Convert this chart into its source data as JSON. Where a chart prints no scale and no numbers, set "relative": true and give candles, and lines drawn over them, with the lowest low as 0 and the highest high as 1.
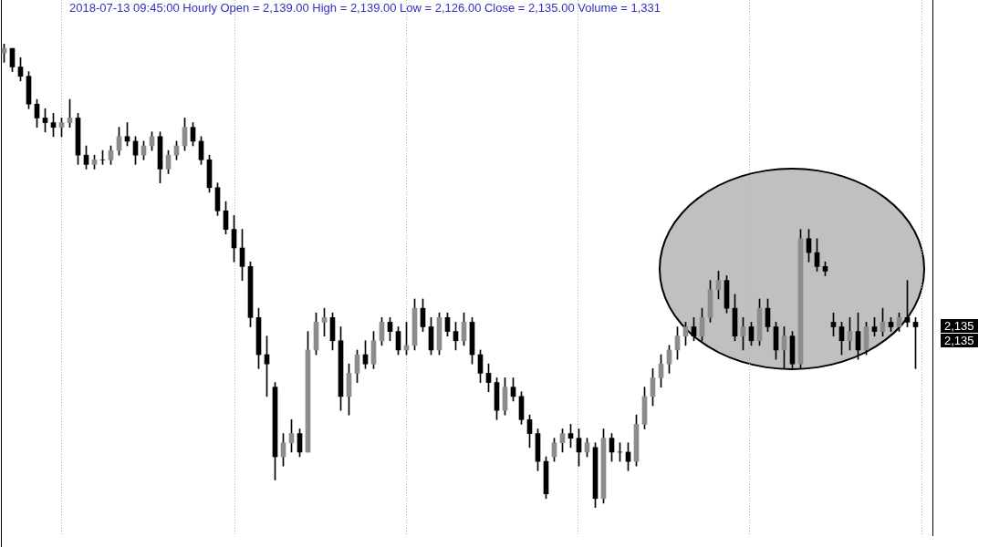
{
  "chart_data": {
    "type": "candlestick",
    "title": "2018-07-13 09:45:00 Hourly Open = 2,139.00 High = 2,139.00 Low = 2,126.00 Close = 2,135.00 Volume = 1,331",
    "relative": true,
    "color": "#000000",
    "annotations": [
      "2,135",
      "2,135"
    ],
    "colors": [
      "#8c8c8c",
      "#000000",
      "#000000",
      "#000000",
      "#000000",
      "#000000",
      "#000000",
      "#8c8c8c",
      "#8c8c8c",
      "#000000",
      "#000000",
      "#8c8c8c",
      "#000000",
      "#8c8c8c",
      "#8c8c8c",
      "#000000",
      "#000000",
      "#8c8c8c",
      "#8c8c8c",
      "#000000",
      "#8c8c8c",
      "#8c8c8c",
      "#8c8c8c",
      "#000000",
      "#000000",
      "#000000",
      "#000000",
      "#000000",
      "#000000",
      "#000000",
      "#000000",
      "#000000",
      "#000000",
      "#000000",
      "#8c8c8c",
      "#8c8c8c",
      "#000000",
      "#8c8c8c",
      "#8c8c8c",
      "#8c8c8c",
      "#000000",
      "#000000",
      "#8c8c8c",
      "#8c8c8c",
      "#000000",
      "#8c8c8c",
      "#8c8c8c",
      "#000000",
      "#000000",
      "#8c8c8c",
      "#8c8c8c",
      "#000000",
      "#000000",
      "#8c8c8c",
      "#000000",
      "#000000",
      "#8c8c8c",
      "#000000",
      "#000000",
      "#000000",
      "#000000",
      "#8c8c8c",
      "#000000",
      "#000000",
      "#000000",
      "#000000",
      "#000000",
      "#8c8c8c",
      "#8c8c8c",
      "#000000",
      "#000000",
      "#8c8c8c",
      "#000000",
      "#8c8c8c",
      "#000000",
      "#000000",
      "#000000",
      "#8c8c8c",
      "#8c8c8c",
      "#8c8c8c",
      "#8c8c8c",
      "#8c8c8c",
      "#8c8c8c",
      "#8c8c8c",
      "#000000",
      "#8c8c8c",
      "#8c8c8c",
      "#8c8c8c",
      "#000000",
      "#000000",
      "#8c8c8c",
      "#000000",
      "#8c8c8c",
      "#000000",
      "#000000",
      "#8c8c8c",
      "#000000",
      "#8c8c8c",
      "#000000",
      "#000000",
      "#000000",
      "#000000",
      "#000000",
      "#8c8c8c",
      "#000000",
      "#8c8c8c",
      "#000000",
      "#8c8c8c",
      "#000000",
      "#8c8c8c",
      "#000000",
      "#000000"
    ],
    "categories": [
      null,
      null,
      null,
      null,
      null,
      null,
      null,
      null,
      null,
      null,
      null,
      null,
      null,
      null,
      null,
      null,
      null,
      null,
      null,
      null,
      null,
      null,
      null,
      null,
      null,
      null,
      null,
      null,
      null,
      null,
      null,
      null,
      null,
      null,
      null,
      null,
      null,
      null,
      null,
      null,
      null,
      null,
      null,
      null,
      null,
      null,
      null,
      null,
      null,
      null,
      null,
      null,
      null,
      null,
      null,
      null,
      null,
      null,
      null,
      null,
      null,
      null,
      null,
      null,
      null,
      null,
      null,
      null,
      null,
      null,
      null,
      null,
      null,
      null,
      null,
      null,
      null,
      null,
      null,
      null,
      null,
      null,
      null,
      null,
      null,
      null,
      null,
      null,
      null,
      null,
      null,
      null,
      null,
      null,
      null,
      null,
      null,
      null,
      null,
      null,
      null,
      null,
      null,
      null,
      null,
      null,
      null,
      null,
      null,
      null,
      null,
      null
    ],
    "ohlc": [
      [
        0.98,
        1.0,
        0.96,
        0.99
      ],
      [
        0.99,
        0.99,
        0.94,
        0.95
      ],
      [
        0.95,
        0.97,
        0.92,
        0.93
      ],
      [
        0.93,
        0.94,
        0.86,
        0.87
      ],
      [
        0.87,
        0.88,
        0.82,
        0.84
      ],
      [
        0.84,
        0.86,
        0.81,
        0.83
      ],
      [
        0.83,
        0.85,
        0.8,
        0.82
      ],
      [
        0.82,
        0.84,
        0.8,
        0.83
      ],
      [
        0.83,
        0.88,
        0.82,
        0.84
      ],
      [
        0.84,
        0.85,
        0.74,
        0.76
      ],
      [
        0.76,
        0.78,
        0.73,
        0.74
      ],
      [
        0.74,
        0.76,
        0.73,
        0.75
      ],
      [
        0.75,
        0.77,
        0.74,
        0.75
      ],
      [
        0.75,
        0.78,
        0.74,
        0.77
      ],
      [
        0.77,
        0.82,
        0.76,
        0.8
      ],
      [
        0.8,
        0.83,
        0.78,
        0.79
      ],
      [
        0.79,
        0.8,
        0.74,
        0.76
      ],
      [
        0.76,
        0.79,
        0.75,
        0.78
      ],
      [
        0.78,
        0.81,
        0.77,
        0.8
      ],
      [
        0.8,
        0.81,
        0.7,
        0.73
      ],
      [
        0.73,
        0.77,
        0.72,
        0.76
      ],
      [
        0.76,
        0.79,
        0.75,
        0.78
      ],
      [
        0.78,
        0.84,
        0.77,
        0.82
      ],
      [
        0.82,
        0.83,
        0.78,
        0.79
      ],
      [
        0.79,
        0.8,
        0.74,
        0.75
      ],
      [
        0.75,
        0.76,
        0.68,
        0.69
      ],
      [
        0.69,
        0.7,
        0.63,
        0.64
      ],
      [
        0.64,
        0.66,
        0.59,
        0.6
      ],
      [
        0.6,
        0.63,
        0.53,
        0.56
      ],
      [
        0.56,
        0.6,
        0.49,
        0.52
      ],
      [
        0.52,
        0.53,
        0.39,
        0.41
      ],
      [
        0.41,
        0.43,
        0.3,
        0.33
      ],
      [
        0.33,
        0.37,
        0.24,
        0.31
      ],
      [
        0.26,
        0.27,
        0.06,
        0.11
      ],
      [
        0.11,
        0.16,
        0.09,
        0.14
      ],
      [
        0.14,
        0.19,
        0.12,
        0.16
      ],
      [
        0.16,
        0.17,
        0.11,
        0.12
      ],
      [
        0.12,
        0.38,
        0.12,
        0.34
      ],
      [
        0.34,
        0.42,
        0.33,
        0.4
      ],
      [
        0.4,
        0.43,
        0.37,
        0.41
      ],
      [
        0.41,
        0.42,
        0.34,
        0.36
      ],
      [
        0.36,
        0.39,
        0.21,
        0.24
      ],
      [
        0.24,
        0.31,
        0.2,
        0.29
      ],
      [
        0.29,
        0.34,
        0.27,
        0.33
      ],
      [
        0.33,
        0.36,
        0.3,
        0.31
      ],
      [
        0.31,
        0.38,
        0.3,
        0.36
      ],
      [
        0.36,
        0.41,
        0.35,
        0.4
      ],
      [
        0.4,
        0.41,
        0.36,
        0.38
      ],
      [
        0.38,
        0.39,
        0.33,
        0.34
      ],
      [
        0.34,
        0.4,
        0.33,
        0.35
      ],
      [
        0.35,
        0.45,
        0.34,
        0.43
      ],
      [
        0.43,
        0.45,
        0.38,
        0.39
      ],
      [
        0.39,
        0.41,
        0.33,
        0.34
      ],
      [
        0.34,
        0.42,
        0.33,
        0.41
      ],
      [
        0.41,
        0.42,
        0.37,
        0.38
      ],
      [
        0.38,
        0.4,
        0.34,
        0.36
      ],
      [
        0.36,
        0.42,
        0.35,
        0.4
      ],
      [
        0.4,
        0.41,
        0.31,
        0.33
      ],
      [
        0.33,
        0.34,
        0.27,
        0.29
      ],
      [
        0.29,
        0.31,
        0.25,
        0.27
      ],
      [
        0.27,
        0.28,
        0.19,
        0.21
      ],
      [
        0.21,
        0.28,
        0.2,
        0.26
      ],
      [
        0.26,
        0.28,
        0.23,
        0.24
      ],
      [
        0.24,
        0.25,
        0.18,
        0.19
      ],
      [
        0.19,
        0.2,
        0.13,
        0.16
      ],
      [
        0.16,
        0.17,
        0.08,
        0.1
      ],
      [
        0.1,
        0.11,
        0.02,
        0.03
      ],
      [
        0.11,
        0.15,
        0.1,
        0.14
      ],
      [
        0.14,
        0.17,
        0.12,
        0.16
      ],
      [
        0.16,
        0.18,
        0.13,
        0.15
      ],
      [
        0.15,
        0.17,
        0.09,
        0.12
      ],
      [
        0.12,
        0.15,
        0.11,
        0.14
      ],
      [
        0.13,
        0.14,
        0.0,
        0.02
      ],
      [
        0.02,
        0.17,
        0.01,
        0.15
      ],
      [
        0.15,
        0.16,
        0.1,
        0.12
      ],
      [
        0.12,
        0.14,
        0.1,
        0.12
      ],
      [
        0.12,
        0.14,
        0.08,
        0.1
      ],
      [
        0.1,
        0.2,
        0.09,
        0.18
      ],
      [
        0.18,
        0.26,
        0.17,
        0.24
      ],
      [
        0.24,
        0.3,
        0.22,
        0.28
      ],
      [
        0.28,
        0.33,
        0.26,
        0.31
      ],
      [
        0.31,
        0.35,
        0.29,
        0.34
      ],
      [
        0.34,
        0.39,
        0.32,
        0.37
      ],
      [
        0.37,
        0.4,
        0.35,
        0.39
      ],
      [
        0.39,
        0.41,
        0.36,
        0.37
      ],
      [
        0.37,
        0.43,
        0.36,
        0.41
      ],
      [
        0.41,
        0.49,
        0.4,
        0.47
      ],
      [
        0.47,
        0.51,
        0.45,
        0.49
      ],
      [
        0.49,
        0.5,
        0.42,
        0.43
      ],
      [
        0.43,
        0.46,
        0.36,
        0.37
      ],
      [
        0.37,
        0.41,
        0.34,
        0.39
      ],
      [
        0.39,
        0.4,
        0.35,
        0.36
      ],
      [
        0.36,
        0.45,
        0.35,
        0.43
      ],
      [
        0.43,
        0.45,
        0.38,
        0.39
      ],
      [
        0.39,
        0.4,
        0.32,
        0.34
      ],
      [
        0.34,
        0.39,
        0.3,
        0.37
      ],
      [
        0.37,
        0.38,
        0.3,
        0.31
      ],
      [
        0.31,
        0.6,
        0.3,
        0.58
      ],
      [
        0.58,
        0.6,
        0.53,
        0.55
      ],
      [
        0.55,
        0.58,
        0.51,
        0.52
      ],
      [
        0.52,
        0.53,
        0.5,
        0.51
      ],
      [
        0.4,
        0.42,
        0.37,
        0.39
      ],
      [
        0.39,
        0.4,
        0.33,
        0.36
      ],
      [
        0.36,
        0.41,
        0.34,
        0.38
      ],
      [
        0.38,
        0.42,
        0.32,
        0.34
      ],
      [
        0.34,
        0.4,
        0.33,
        0.39
      ],
      [
        0.39,
        0.41,
        0.37,
        0.38
      ],
      [
        0.38,
        0.43,
        0.37,
        0.4
      ],
      [
        0.4,
        0.41,
        0.38,
        0.39
      ],
      [
        0.39,
        0.42,
        0.38,
        0.41
      ],
      [
        0.41,
        0.49,
        0.39,
        0.4
      ],
      [
        0.4,
        0.41,
        0.3,
        0.39
      ]
    ]
  }
}
